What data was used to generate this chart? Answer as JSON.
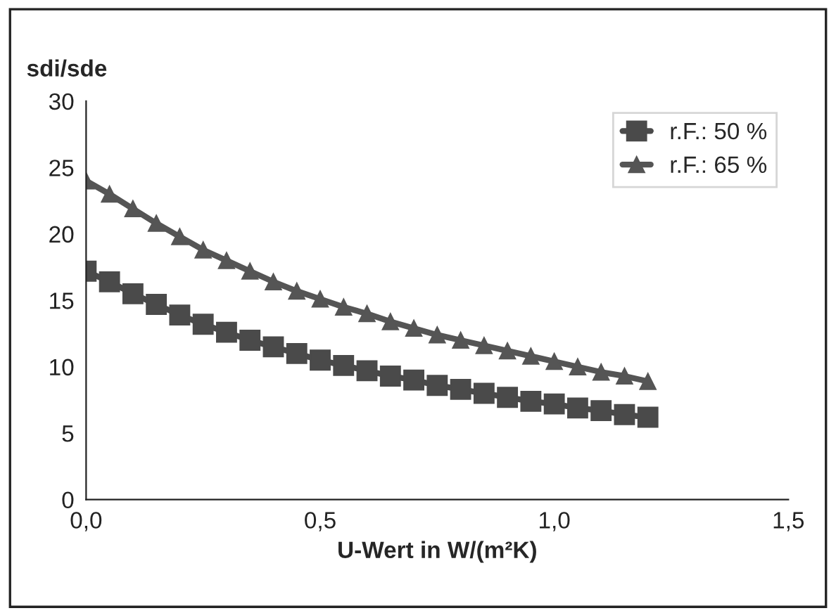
{
  "chart_data": {
    "type": "line",
    "xlabel": "U-Wert in W/(m²K)",
    "ylabel": "sdi/sde",
    "x": [
      0,
      0.05,
      0.1,
      0.15,
      0.2,
      0.25,
      0.3,
      0.35,
      0.4,
      0.45,
      0.5,
      0.55,
      0.6,
      0.65,
      0.7,
      0.75,
      0.8,
      0.85,
      0.9,
      0.95,
      1.0,
      1.05,
      1.1,
      1.15,
      1.2
    ],
    "series": [
      {
        "name": "r.F.: 50 %",
        "color": "#4a4a4a",
        "marker": "square",
        "values": [
          17.2,
          16.4,
          15.5,
          14.7,
          13.9,
          13.2,
          12.6,
          12.0,
          11.5,
          11.0,
          10.5,
          10.1,
          9.7,
          9.3,
          9.0,
          8.6,
          8.3,
          8.0,
          7.7,
          7.4,
          7.2,
          6.9,
          6.7,
          6.4,
          6.2
        ]
      },
      {
        "name": "r.F.: 65 %",
        "color": "#555555",
        "marker": "triangle",
        "values": [
          24.0,
          23.0,
          21.9,
          20.8,
          19.8,
          18.8,
          18.0,
          17.2,
          16.4,
          15.7,
          15.1,
          14.5,
          14.0,
          13.4,
          12.9,
          12.4,
          12.0,
          11.6,
          11.2,
          10.8,
          10.4,
          10.0,
          9.6,
          9.3,
          8.9
        ]
      }
    ],
    "xlim": [
      0,
      1.5
    ],
    "xticks": [
      {
        "value": 0,
        "label": "0,0"
      },
      {
        "value": 0.5,
        "label": "0,5"
      },
      {
        "value": 1.0,
        "label": "1,0"
      },
      {
        "value": 1.5,
        "label": "1,5"
      }
    ],
    "ylim": [
      0,
      30
    ],
    "yticks": [
      0,
      5,
      10,
      15,
      20,
      25,
      30
    ],
    "legend": "top right",
    "grid": false,
    "line_style": "solid"
  }
}
